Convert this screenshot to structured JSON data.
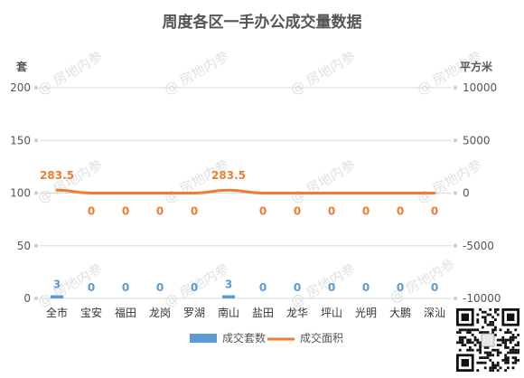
{
  "chart_data": {
    "type": "bar+line",
    "title": "周度各区一手办公成交量数据",
    "left_unit": "套",
    "right_unit": "平方米",
    "categories": [
      "全市",
      "宝安",
      "福田",
      "龙岗",
      "罗湖",
      "南山",
      "盐田",
      "龙华",
      "坪山",
      "光明",
      "大鹏",
      "深汕"
    ],
    "series": [
      {
        "name": "成交套数",
        "type": "bar",
        "axis": "left",
        "color": "#5b9bd5",
        "values": [
          3,
          0,
          0,
          0,
          0,
          3,
          0,
          0,
          0,
          0,
          0,
          0
        ]
      },
      {
        "name": "成交面积",
        "type": "line",
        "axis": "right",
        "color": "#ed7d31",
        "values": [
          283.5,
          0,
          0,
          0,
          0,
          283.5,
          0,
          0,
          0,
          0,
          0,
          0
        ]
      }
    ],
    "left_axis": {
      "min": 0,
      "max": 200,
      "ticks": [
        "200",
        "150",
        "100",
        "50",
        "0"
      ]
    },
    "right_axis": {
      "min": -10000,
      "max": 10000,
      "ticks": [
        "10000",
        "5000",
        "0",
        "-5000",
        "-10000"
      ]
    },
    "grid": true,
    "legend_position": "bottom"
  },
  "watermark": "@ 房地内参",
  "qr_icon": "qr-code-icon"
}
